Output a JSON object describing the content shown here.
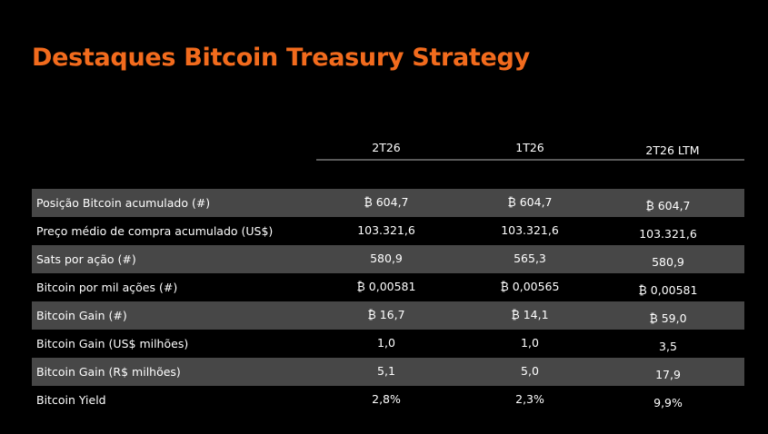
{
  "title": "Destaques Bitcoin Treasury Strategy",
  "columns": [
    "2T26",
    "1T26",
    "2T26 LTM"
  ],
  "rows": [
    {
      "label": "Posição Bitcoin acumulado (#)",
      "values": [
        "₿ 604,7",
        "₿ 604,7",
        "₿ 604,7"
      ],
      "shaded": true
    },
    {
      "label": "Preço médio de compra acumulado (US$)",
      "values": [
        "103.321,6",
        "103.321,6",
        "103.321,6"
      ],
      "shaded": false
    },
    {
      "label": "Sats por ação (#)",
      "values": [
        "580,9",
        "565,3",
        "580,9"
      ],
      "shaded": true
    },
    {
      "label": "Bitcoin por mil ações (#)",
      "values": [
        "₿ 0,00581",
        "₿ 0,00565",
        "₿ 0,00581"
      ],
      "shaded": false
    },
    {
      "label": "Bitcoin Gain (#)",
      "values": [
        "₿ 16,7",
        "₿ 14,1",
        "₿ 59,0"
      ],
      "shaded": true
    },
    {
      "label": "Bitcoin Gain (US$ milhões)",
      "values": [
        "1,0",
        "1,0",
        "3,5"
      ],
      "shaded": false
    },
    {
      "label": "Bitcoin Gain (R$ milhões)",
      "values": [
        "5,1",
        "5,0",
        "17,9"
      ],
      "shaded": true
    },
    {
      "label": "Bitcoin Yield",
      "values": [
        "2,8%",
        "2,3%",
        "9,9%"
      ],
      "shaded": false
    }
  ],
  "colors": {
    "title": "#f26b1d",
    "row_shade": "#474747",
    "background": "#000000"
  }
}
